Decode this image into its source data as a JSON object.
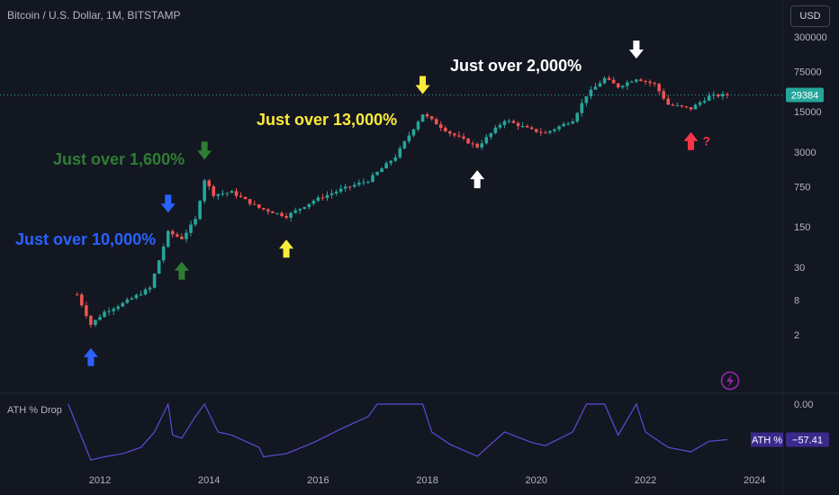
{
  "header": {
    "symbol_title": "Bitcoin / U.S. Dollar, 1M, BITSTAMP",
    "currency_label": "USD"
  },
  "colors": {
    "background": "#131722",
    "up_candle": "#26a69a",
    "down_candle": "#ef5350",
    "indicator_line": "#5b4bd6",
    "price_label_bg": "#26a69a",
    "ath_label_bg": "#3a2a8c",
    "blue": "#2962ff",
    "green": "#2e7d32",
    "yellow": "#fdeb3c",
    "white": "#ffffff",
    "red": "#f23645"
  },
  "chart_data": [
    {
      "type": "candlestick",
      "title": "Bitcoin / U.S. Dollar, 1M, BITSTAMP",
      "y_scale": "log",
      "ylim": [
        1,
        600000
      ],
      "y_ticks": [
        {
          "value": 300000,
          "label": "300000"
        },
        {
          "value": 75000,
          "label": "75000"
        },
        {
          "value": 15000,
          "label": "15000"
        },
        {
          "value": 3000,
          "label": "3000"
        },
        {
          "value": 750,
          "label": "750"
        },
        {
          "value": 150,
          "label": "150"
        },
        {
          "value": 30,
          "label": "30"
        },
        {
          "value": 8,
          "label": "8"
        },
        {
          "value": 2,
          "label": "2"
        }
      ],
      "x_ticks": [
        "2012",
        "2014",
        "2016",
        "2018",
        "2020",
        "2022",
        "2024"
      ],
      "last_price": 29384,
      "last_price_label": "29384",
      "price_path": [
        {
          "date": "2011-08",
          "close": 10
        },
        {
          "date": "2011-11",
          "close": 3
        },
        {
          "date": "2012-02",
          "close": 5
        },
        {
          "date": "2012-06",
          "close": 7
        },
        {
          "date": "2012-12",
          "close": 13
        },
        {
          "date": "2013-04",
          "close": 120
        },
        {
          "date": "2013-07",
          "close": 95
        },
        {
          "date": "2013-10",
          "close": 200
        },
        {
          "date": "2013-12",
          "close": 1000
        },
        {
          "date": "2014-02",
          "close": 550
        },
        {
          "date": "2014-06",
          "close": 600
        },
        {
          "date": "2014-12",
          "close": 320
        },
        {
          "date": "2015-06",
          "close": 230
        },
        {
          "date": "2015-12",
          "close": 430
        },
        {
          "date": "2016-06",
          "close": 670
        },
        {
          "date": "2016-12",
          "close": 960
        },
        {
          "date": "2017-06",
          "close": 2500
        },
        {
          "date": "2017-12",
          "close": 13800
        },
        {
          "date": "2018-06",
          "close": 6400
        },
        {
          "date": "2018-12",
          "close": 3700
        },
        {
          "date": "2019-06",
          "close": 10800
        },
        {
          "date": "2019-12",
          "close": 7200
        },
        {
          "date": "2020-03",
          "close": 6400
        },
        {
          "date": "2020-09",
          "close": 10800
        },
        {
          "date": "2020-12",
          "close": 29000
        },
        {
          "date": "2021-04",
          "close": 57000
        },
        {
          "date": "2021-07",
          "close": 41000
        },
        {
          "date": "2021-11",
          "close": 57000
        },
        {
          "date": "2022-03",
          "close": 45000
        },
        {
          "date": "2022-06",
          "close": 20000
        },
        {
          "date": "2022-11",
          "close": 17000
        },
        {
          "date": "2023-03",
          "close": 28000
        },
        {
          "date": "2023-07",
          "close": 29384
        }
      ],
      "annotations": [
        {
          "text": "Just over 10,000%",
          "color": "blue"
        },
        {
          "text": "Just over 1,600%",
          "color": "green"
        },
        {
          "text": "Just over 13,000%",
          "color": "yellow"
        },
        {
          "text": "Just over 2,000%",
          "color": "white"
        }
      ],
      "markers": [
        {
          "date": "2011-11",
          "direction": "up",
          "color": "blue"
        },
        {
          "date": "2013-04",
          "direction": "down",
          "color": "blue"
        },
        {
          "date": "2013-07",
          "direction": "up",
          "color": "green"
        },
        {
          "date": "2013-12",
          "direction": "down",
          "color": "green"
        },
        {
          "date": "2015-06",
          "direction": "up",
          "color": "yellow"
        },
        {
          "date": "2017-12",
          "direction": "down",
          "color": "yellow"
        },
        {
          "date": "2018-12",
          "direction": "up",
          "color": "white"
        },
        {
          "date": "2021-11",
          "direction": "down",
          "color": "white"
        },
        {
          "date": "2022-11",
          "direction": "up",
          "color": "red",
          "note": "?"
        }
      ]
    },
    {
      "type": "line",
      "title": "ATH % Drop",
      "y_ticks": [
        {
          "value": 0,
          "label": "0.00"
        }
      ],
      "ylim": [
        -90,
        0
      ],
      "last_value_label": "ATH %",
      "last_value": "−57.41",
      "series": [
        {
          "values": [
            {
              "date": "2011-06",
              "value": 0
            },
            {
              "date": "2011-11",
              "value": -90
            },
            {
              "date": "2012-02",
              "value": -85
            },
            {
              "date": "2012-06",
              "value": -80
            },
            {
              "date": "2012-10",
              "value": -70
            },
            {
              "date": "2013-01",
              "value": -45
            },
            {
              "date": "2013-04",
              "value": 0
            },
            {
              "date": "2013-05",
              "value": -50
            },
            {
              "date": "2013-07",
              "value": -55
            },
            {
              "date": "2013-10",
              "value": -20
            },
            {
              "date": "2013-12",
              "value": 0
            },
            {
              "date": "2014-03",
              "value": -45
            },
            {
              "date": "2014-06",
              "value": -50
            },
            {
              "date": "2014-12",
              "value": -70
            },
            {
              "date": "2015-01",
              "value": -85
            },
            {
              "date": "2015-06",
              "value": -80
            },
            {
              "date": "2015-12",
              "value": -62
            },
            {
              "date": "2016-06",
              "value": -40
            },
            {
              "date": "2016-12",
              "value": -20
            },
            {
              "date": "2017-02",
              "value": 0
            },
            {
              "date": "2017-12",
              "value": 0
            },
            {
              "date": "2018-02",
              "value": -45
            },
            {
              "date": "2018-06",
              "value": -65
            },
            {
              "date": "2018-12",
              "value": -84
            },
            {
              "date": "2019-06",
              "value": -45
            },
            {
              "date": "2019-12",
              "value": -62
            },
            {
              "date": "2020-03",
              "value": -67
            },
            {
              "date": "2020-09",
              "value": -45
            },
            {
              "date": "2020-12",
              "value": 0
            },
            {
              "date": "2021-04",
              "value": 0
            },
            {
              "date": "2021-07",
              "value": -50
            },
            {
              "date": "2021-11",
              "value": 0
            },
            {
              "date": "2022-01",
              "value": -45
            },
            {
              "date": "2022-06",
              "value": -70
            },
            {
              "date": "2022-11",
              "value": -77
            },
            {
              "date": "2023-03",
              "value": -60
            },
            {
              "date": "2023-07",
              "value": -57.41
            }
          ]
        }
      ]
    }
  ]
}
